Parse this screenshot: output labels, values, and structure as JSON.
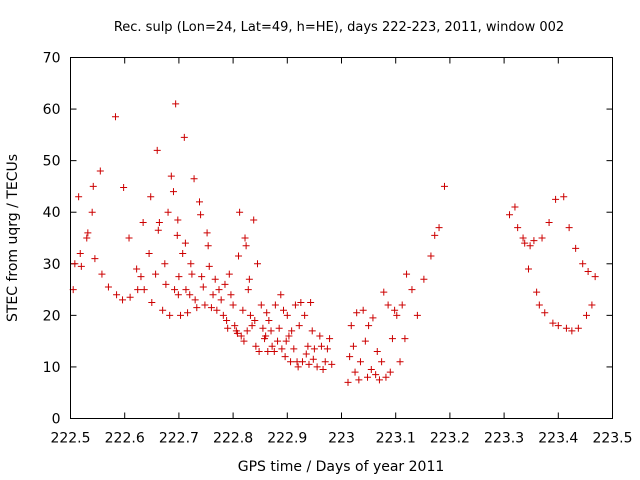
{
  "chart_data": {
    "type": "scatter",
    "title": "Rec. sulp (Lon=24, Lat=49, h=HE), days 222-223, 2011, window 002",
    "xlabel": "GPS time / Days of year 2011",
    "ylabel": "STEC from uqrg / TECUs",
    "xlim": [
      222.5,
      223.5
    ],
    "ylim": [
      0,
      70
    ],
    "xticks": [
      222.5,
      222.6,
      222.7,
      222.8,
      222.9,
      223.0,
      223.1,
      223.2,
      223.3,
      223.4,
      223.5
    ],
    "xtick_labels": [
      "222.5",
      "222.6",
      "222.7",
      "222.8",
      "222.9",
      "223",
      "223.1",
      "223.2",
      "223.3",
      "223.4",
      "223.5"
    ],
    "yticks": [
      0,
      10,
      20,
      30,
      40,
      50,
      60,
      70
    ],
    "ytick_labels": [
      "0",
      "10",
      "20",
      "30",
      "40",
      "50",
      "60",
      "70"
    ],
    "marker": "+",
    "marker_color": "#cc0000",
    "grid": false,
    "series": [
      {
        "name": "STEC",
        "points": [
          [
            222.505,
            25.0
          ],
          [
            222.508,
            30.0
          ],
          [
            222.515,
            43.0
          ],
          [
            222.518,
            32.0
          ],
          [
            222.52,
            29.5
          ],
          [
            222.53,
            35.0
          ],
          [
            222.532,
            36.0
          ],
          [
            222.54,
            40.0
          ],
          [
            222.542,
            45.0
          ],
          [
            222.545,
            31.0
          ],
          [
            222.555,
            48.0
          ],
          [
            222.558,
            28.0
          ],
          [
            222.57,
            25.5
          ],
          [
            222.583,
            58.5
          ],
          [
            222.585,
            24.0
          ],
          [
            222.596,
            23.0
          ],
          [
            222.598,
            44.8
          ],
          [
            222.608,
            35.0
          ],
          [
            222.61,
            23.5
          ],
          [
            222.622,
            29.0
          ],
          [
            222.624,
            25.0
          ],
          [
            222.63,
            27.5
          ],
          [
            222.634,
            38.0
          ],
          [
            222.636,
            25.0
          ],
          [
            222.645,
            32.0
          ],
          [
            222.648,
            43.0
          ],
          [
            222.65,
            22.5
          ],
          [
            222.657,
            28.0
          ],
          [
            222.66,
            52.0
          ],
          [
            222.662,
            36.5
          ],
          [
            222.664,
            38.0
          ],
          [
            222.67,
            21.0
          ],
          [
            222.674,
            30.0
          ],
          [
            222.676,
            26.0
          ],
          [
            222.68,
            40.0
          ],
          [
            222.683,
            20.0
          ],
          [
            222.686,
            47.0
          ],
          [
            222.69,
            44.0
          ],
          [
            222.692,
            25.0
          ],
          [
            222.694,
            61.0
          ],
          [
            222.697,
            35.5
          ],
          [
            222.698,
            38.5
          ],
          [
            222.699,
            24.0
          ],
          [
            222.7,
            27.5
          ],
          [
            222.703,
            20.0
          ],
          [
            222.707,
            32.0
          ],
          [
            222.71,
            54.5
          ],
          [
            222.712,
            34.0
          ],
          [
            222.713,
            25.0
          ],
          [
            222.716,
            20.5
          ],
          [
            222.72,
            24.0
          ],
          [
            222.722,
            30.0
          ],
          [
            222.724,
            28.0
          ],
          [
            222.728,
            46.5
          ],
          [
            222.73,
            23.0
          ],
          [
            222.733,
            21.5
          ],
          [
            222.738,
            42.0
          ],
          [
            222.74,
            39.5
          ],
          [
            222.742,
            27.5
          ],
          [
            222.745,
            25.5
          ],
          [
            222.748,
            22.0
          ],
          [
            222.752,
            36.0
          ],
          [
            222.754,
            33.5
          ],
          [
            222.756,
            29.5
          ],
          [
            222.76,
            21.5
          ],
          [
            222.763,
            24.0
          ],
          [
            222.767,
            27.0
          ],
          [
            222.77,
            21.0
          ],
          [
            222.774,
            25.0
          ],
          [
            222.778,
            23.0
          ],
          [
            222.782,
            20.0
          ],
          [
            222.785,
            26.0
          ],
          [
            222.788,
            19.0
          ],
          [
            222.79,
            17.5
          ],
          [
            222.793,
            28.0
          ],
          [
            222.796,
            24.0
          ],
          [
            222.8,
            22.0
          ],
          [
            222.803,
            18.0
          ],
          [
            222.806,
            17.0
          ],
          [
            222.808,
            16.5
          ],
          [
            222.81,
            31.5
          ],
          [
            222.812,
            40.0
          ],
          [
            222.815,
            16.0
          ],
          [
            222.818,
            21.0
          ],
          [
            222.82,
            15.0
          ],
          [
            222.822,
            35.0
          ],
          [
            222.824,
            33.5
          ],
          [
            222.826,
            17.0
          ],
          [
            222.828,
            25.0
          ],
          [
            222.83,
            27.0
          ],
          [
            222.832,
            20.0
          ],
          [
            222.835,
            18.0
          ],
          [
            222.838,
            38.5
          ],
          [
            222.84,
            19.0
          ],
          [
            222.842,
            14.0
          ],
          [
            222.845,
            30.0
          ],
          [
            222.848,
            13.0
          ],
          [
            222.852,
            22.0
          ],
          [
            222.855,
            17.5
          ],
          [
            222.858,
            15.5
          ],
          [
            222.86,
            16.0
          ],
          [
            222.862,
            20.5
          ],
          [
            222.864,
            13.0
          ],
          [
            222.866,
            19.0
          ],
          [
            222.87,
            17.0
          ],
          [
            222.872,
            14.0
          ],
          [
            222.876,
            13.0
          ],
          [
            222.878,
            22.0
          ],
          [
            222.882,
            15.0
          ],
          [
            222.885,
            17.5
          ],
          [
            222.888,
            24.0
          ],
          [
            222.89,
            13.5
          ],
          [
            222.893,
            21.0
          ],
          [
            222.896,
            12.0
          ],
          [
            222.898,
            15.0
          ],
          [
            222.9,
            20.0
          ],
          [
            222.903,
            16.0
          ],
          [
            222.906,
            11.0
          ],
          [
            222.908,
            17.0
          ],
          [
            222.912,
            13.5
          ],
          [
            222.915,
            22.0
          ],
          [
            222.918,
            11.0
          ],
          [
            222.92,
            10.0
          ],
          [
            222.922,
            18.0
          ],
          [
            222.925,
            22.5
          ],
          [
            222.928,
            11.0
          ],
          [
            222.932,
            20.0
          ],
          [
            222.935,
            12.5
          ],
          [
            222.938,
            14.0
          ],
          [
            222.94,
            10.5
          ],
          [
            222.943,
            22.5
          ],
          [
            222.946,
            17.0
          ],
          [
            222.948,
            11.5
          ],
          [
            222.95,
            13.5
          ],
          [
            222.955,
            10.0
          ],
          [
            222.96,
            16.0
          ],
          [
            222.963,
            14.0
          ],
          [
            222.966,
            9.5
          ],
          [
            222.97,
            11.0
          ],
          [
            222.974,
            13.5
          ],
          [
            222.978,
            15.5
          ],
          [
            222.982,
            10.5
          ],
          [
            223.012,
            7.0
          ],
          [
            223.015,
            12.0
          ],
          [
            223.018,
            18.0
          ],
          [
            223.022,
            14.0
          ],
          [
            223.025,
            9.0
          ],
          [
            223.028,
            20.5
          ],
          [
            223.032,
            7.5
          ],
          [
            223.035,
            11.0
          ],
          [
            223.04,
            21.0
          ],
          [
            223.044,
            15.0
          ],
          [
            223.048,
            8.0
          ],
          [
            223.05,
            18.0
          ],
          [
            223.055,
            9.5
          ],
          [
            223.058,
            19.5
          ],
          [
            223.063,
            8.5
          ],
          [
            223.066,
            13.0
          ],
          [
            223.07,
            7.5
          ],
          [
            223.074,
            11.0
          ],
          [
            223.078,
            24.5
          ],
          [
            223.082,
            8.0
          ],
          [
            223.086,
            22.0
          ],
          [
            223.09,
            9.0
          ],
          [
            223.094,
            15.5
          ],
          [
            223.098,
            21.0
          ],
          [
            223.102,
            20.0
          ],
          [
            223.108,
            11.0
          ],
          [
            223.112,
            22.0
          ],
          [
            223.117,
            15.5
          ],
          [
            223.12,
            28.0
          ],
          [
            223.13,
            25.0
          ],
          [
            223.14,
            20.0
          ],
          [
            223.152,
            27.0
          ],
          [
            223.165,
            31.5
          ],
          [
            223.172,
            35.5
          ],
          [
            223.18,
            37.0
          ],
          [
            223.19,
            45.0
          ],
          [
            223.31,
            39.5
          ],
          [
            223.32,
            41.0
          ],
          [
            223.325,
            37.0
          ],
          [
            223.335,
            35.0
          ],
          [
            223.338,
            34.0
          ],
          [
            223.345,
            29.0
          ],
          [
            223.348,
            33.5
          ],
          [
            223.355,
            34.5
          ],
          [
            223.36,
            24.5
          ],
          [
            223.365,
            22.0
          ],
          [
            223.37,
            35.0
          ],
          [
            223.375,
            20.5
          ],
          [
            223.383,
            38.0
          ],
          [
            223.39,
            18.5
          ],
          [
            223.395,
            42.5
          ],
          [
            223.4,
            18.0
          ],
          [
            223.41,
            43.0
          ],
          [
            223.415,
            17.5
          ],
          [
            223.42,
            37.0
          ],
          [
            223.425,
            17.0
          ],
          [
            223.432,
            33.0
          ],
          [
            223.437,
            17.5
          ],
          [
            223.445,
            30.0
          ],
          [
            223.452,
            20.0
          ],
          [
            223.455,
            28.5
          ],
          [
            223.462,
            22.0
          ],
          [
            223.468,
            27.5
          ]
        ]
      }
    ]
  }
}
